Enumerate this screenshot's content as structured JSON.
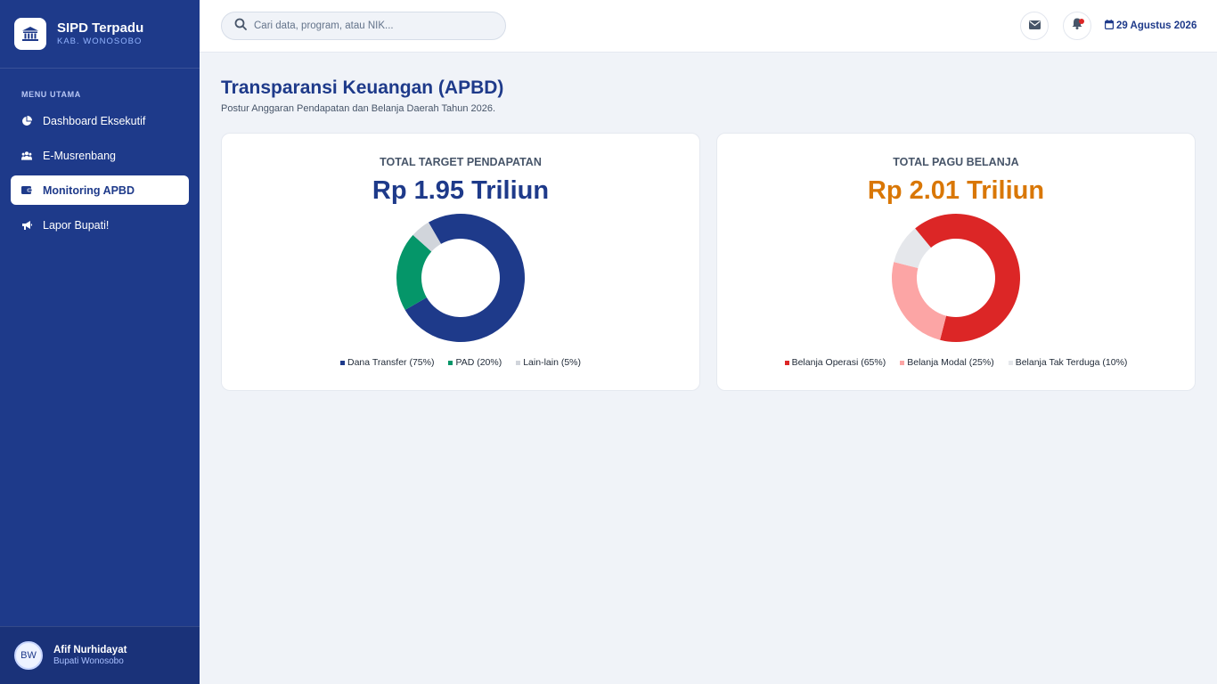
{
  "brand": {
    "title": "SIPD Terpadu",
    "subtitle": "KAB. WONOSOBO"
  },
  "menu": {
    "heading": "MENU UTAMA",
    "items": [
      {
        "label": "Dashboard Eksekutif",
        "icon": "chart-pie-icon",
        "active": false
      },
      {
        "label": "E-Musrenbang",
        "icon": "users-icon",
        "active": false
      },
      {
        "label": "Monitoring APBD",
        "icon": "wallet-icon",
        "active": true
      },
      {
        "label": "Lapor Bupati!",
        "icon": "megaphone-icon",
        "active": false
      }
    ]
  },
  "user": {
    "initials": "BW",
    "name": "Afif Nurhidayat",
    "role": "Bupati Wonosobo"
  },
  "topbar": {
    "search_placeholder": "Cari data, program, atau NIK...",
    "date": "29 Agustus 2026",
    "has_notification": true
  },
  "page": {
    "title": "Transparansi Keuangan (APBD)",
    "subtitle": "Postur Anggaran Pendapatan dan Belanja Daerah Tahun 2026."
  },
  "cards": {
    "income": {
      "label": "TOTAL TARGET PENDAPATAN",
      "value": "Rp 1.95 Triliun",
      "chart_data": {
        "type": "pie",
        "series": [
          {
            "name": "Dana Transfer (75%)",
            "value": 75,
            "color": "#1e3a8a"
          },
          {
            "name": "PAD (20%)",
            "value": 20,
            "color": "#059669"
          },
          {
            "name": "Lain-lain (5%)",
            "value": 5,
            "color": "#d1d5db"
          }
        ]
      }
    },
    "expense": {
      "label": "TOTAL PAGU BELANJA",
      "value": "Rp 2.01 Triliun",
      "chart_data": {
        "type": "pie",
        "series": [
          {
            "name": "Belanja Operasi (65%)",
            "value": 65,
            "color": "#dc2626"
          },
          {
            "name": "Belanja Modal (25%)",
            "value": 25,
            "color": "#fca5a5"
          },
          {
            "name": "Belanja Tak Terduga (10%)",
            "value": 10,
            "color": "#e5e7eb"
          }
        ]
      }
    }
  },
  "colors": {
    "primary": "#1e3a8a",
    "accent_orange": "#d97706",
    "background": "#f0f3f8"
  }
}
